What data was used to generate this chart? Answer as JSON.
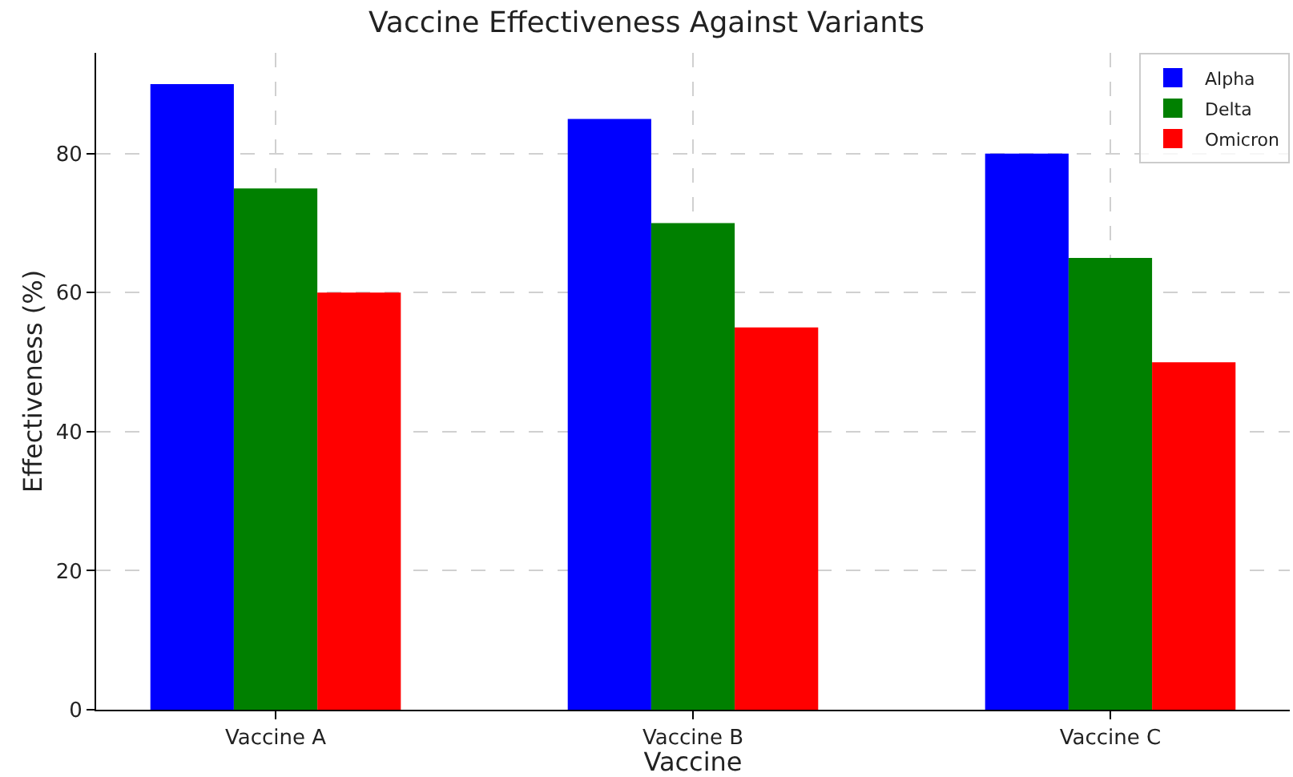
{
  "chart_data": {
    "type": "bar",
    "title": "Vaccine Effectiveness Against Variants",
    "xlabel": "Vaccine",
    "ylabel": "Effectiveness (%)",
    "categories": [
      "Vaccine A",
      "Vaccine B",
      "Vaccine C"
    ],
    "series": [
      {
        "name": "Alpha",
        "color": "#0000ff",
        "values": [
          90,
          85,
          80
        ]
      },
      {
        "name": "Delta",
        "color": "#008000",
        "values": [
          75,
          70,
          65
        ]
      },
      {
        "name": "Omicron",
        "color": "#ff0000",
        "values": [
          60,
          55,
          50
        ]
      }
    ],
    "ylim": [
      0,
      94.5
    ],
    "yticks": [
      0,
      20,
      40,
      60,
      80
    ],
    "grid": true,
    "legend": "top right"
  }
}
